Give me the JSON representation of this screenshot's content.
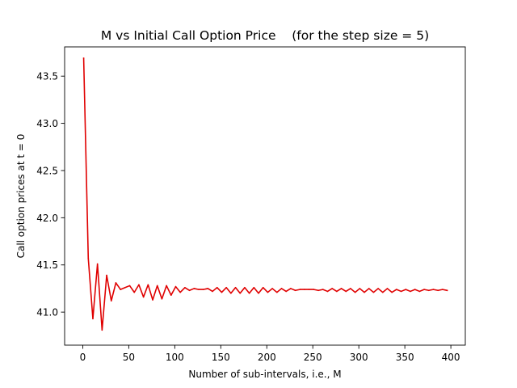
{
  "chart_data": {
    "type": "line",
    "title": "M vs Initial Call Option Price    (for the step size = 5)",
    "xlabel": "Number of sub-intervals, i.e., M",
    "ylabel": "Call option prices at t = 0",
    "xlim": [
      -19.7,
      415.7
    ],
    "ylim": [
      40.65,
      43.81
    ],
    "x_ticks": [
      0,
      50,
      100,
      150,
      200,
      250,
      300,
      350,
      400
    ],
    "x_tick_labels": [
      "0",
      "50",
      "100",
      "150",
      "200",
      "250",
      "300",
      "350",
      "400"
    ],
    "y_ticks": [
      41.0,
      41.5,
      42.0,
      42.5,
      43.0,
      43.5
    ],
    "y_tick_labels": [
      "41.0",
      "41.5",
      "42.0",
      "42.5",
      "43.0",
      "43.5"
    ],
    "grid": false,
    "legend": "none",
    "series": [
      {
        "color": "#e00000",
        "x": [
          1,
          6,
          11,
          16,
          21,
          26,
          31,
          36,
          41,
          46,
          51,
          56,
          61,
          66,
          71,
          76,
          81,
          86,
          91,
          96,
          101,
          106,
          111,
          116,
          121,
          126,
          131,
          136,
          141,
          146,
          151,
          156,
          161,
          166,
          171,
          176,
          181,
          186,
          191,
          196,
          201,
          206,
          211,
          216,
          221,
          226,
          231,
          236,
          241,
          246,
          251,
          256,
          261,
          266,
          271,
          276,
          281,
          286,
          291,
          296,
          301,
          306,
          311,
          316,
          321,
          326,
          331,
          336,
          341,
          346,
          351,
          356,
          361,
          366,
          371,
          376,
          381,
          386,
          391,
          396
        ],
        "y": [
          43.69,
          41.57,
          40.93,
          41.51,
          40.81,
          41.39,
          41.12,
          41.31,
          41.24,
          41.26,
          41.28,
          41.21,
          41.29,
          41.16,
          41.29,
          41.13,
          41.28,
          41.14,
          41.28,
          41.18,
          41.27,
          41.21,
          41.26,
          41.23,
          41.25,
          41.24,
          41.24,
          41.25,
          41.22,
          41.26,
          41.21,
          41.26,
          41.2,
          41.26,
          41.2,
          41.26,
          41.2,
          41.26,
          41.2,
          41.26,
          41.21,
          41.25,
          41.21,
          41.25,
          41.22,
          41.25,
          41.23,
          41.24,
          41.24,
          41.24,
          41.24,
          41.23,
          41.24,
          41.22,
          41.25,
          41.22,
          41.25,
          41.22,
          41.25,
          41.21,
          41.25,
          41.21,
          41.25,
          41.21,
          41.25,
          41.21,
          41.25,
          41.21,
          41.24,
          41.22,
          41.24,
          41.22,
          41.24,
          41.22,
          41.24,
          41.23,
          41.24,
          41.23,
          41.24,
          41.23
        ]
      }
    ]
  }
}
